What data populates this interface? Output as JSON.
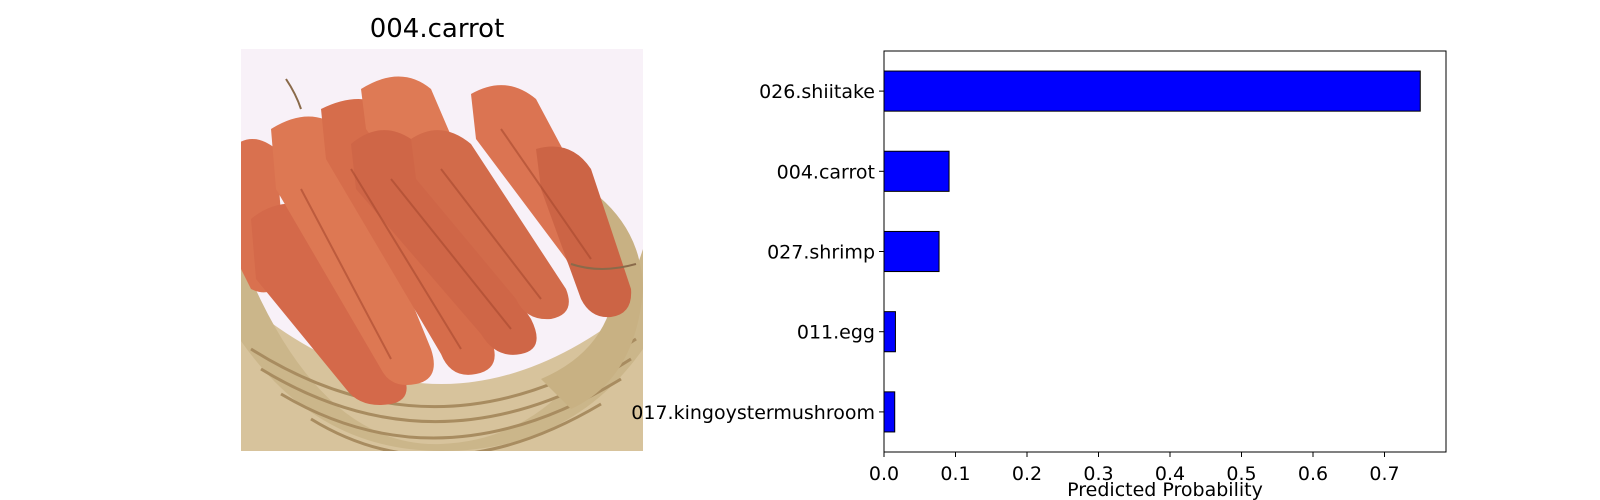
{
  "image_panel": {
    "title": "004.carrot",
    "subject": "carrots-in-woven-basket",
    "colors": {
      "background": "#f8f1f8",
      "basket": "#d7c39c",
      "basket_dark": "#b79d72",
      "carrot": "#d9714f",
      "carrot_dark": "#b9573a"
    }
  },
  "chart_data": {
    "type": "bar",
    "orientation": "horizontal",
    "categories": [
      "026.shiitake",
      "004.carrot",
      "027.shrimp",
      "011.egg",
      "017.kingoystermushroom"
    ],
    "values": [
      0.75,
      0.091,
      0.077,
      0.016,
      0.015
    ],
    "xlabel": "Predicted Probability",
    "ylabel": "",
    "title": "",
    "xlim": [
      0,
      0.786
    ],
    "xticks": [
      "0.0",
      "0.1",
      "0.2",
      "0.3",
      "0.4",
      "0.5",
      "0.6",
      "0.7"
    ],
    "grid": false,
    "bar_color": "#0000ff",
    "edge_color": "#000000"
  }
}
